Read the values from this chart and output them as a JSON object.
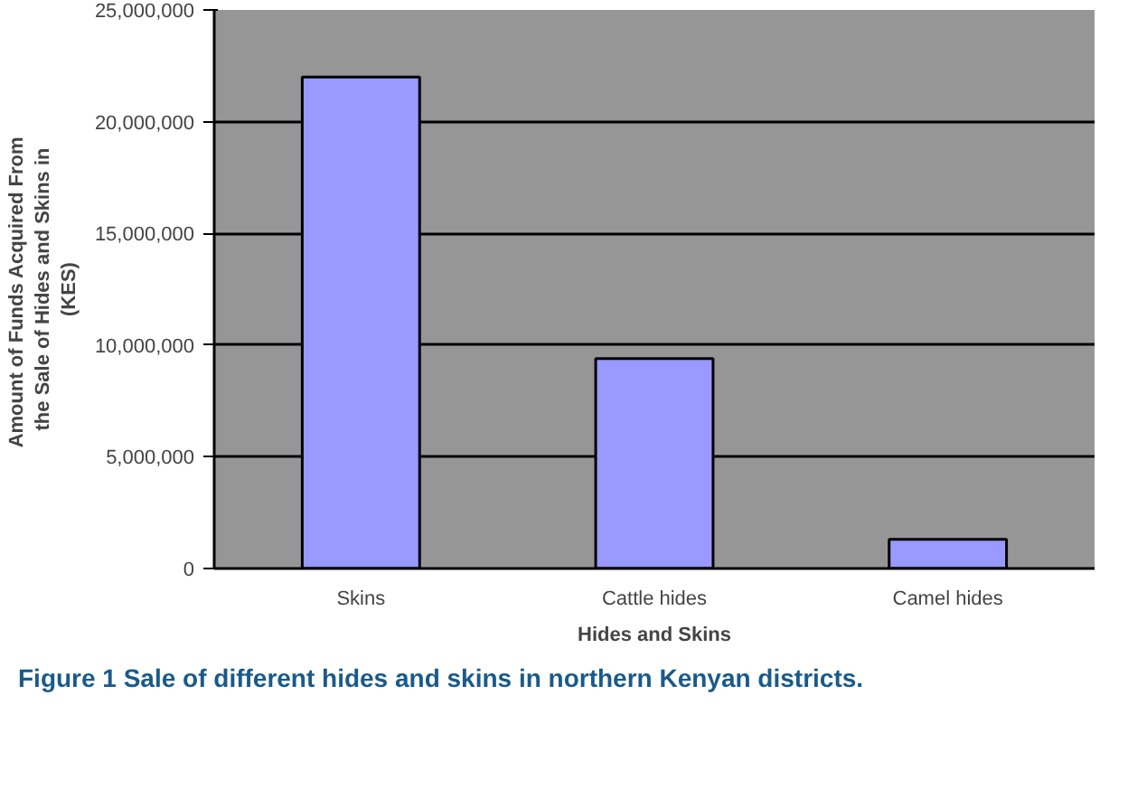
{
  "chart_data": {
    "type": "bar",
    "xlabel": "Hides and Skins",
    "ylabel": "Amount of  Funds Acquired From the Sale of Hides and Skins in (KES)",
    "categories": [
      "Skins",
      "Cattle hides",
      "Camel hides"
    ],
    "values": [
      22000000,
      9400000,
      1300000
    ],
    "color": "#9999ff",
    "ylim": [
      0,
      25000000
    ],
    "yticks": [
      {
        "value": 0,
        "label": "0"
      },
      {
        "value": 5000000,
        "label": "5,000,000"
      },
      {
        "value": 10000000,
        "label": "10,000,000"
      },
      {
        "value": 15000000,
        "label": "15,000,000"
      },
      {
        "value": 20000000,
        "label": "20,000,000"
      },
      {
        "value": 25000000,
        "label": "25,000,000"
      }
    ],
    "grid": "y",
    "annotations": [
      "Figure 1 Sale of different hides and skins in northern Kenyan districts."
    ]
  }
}
